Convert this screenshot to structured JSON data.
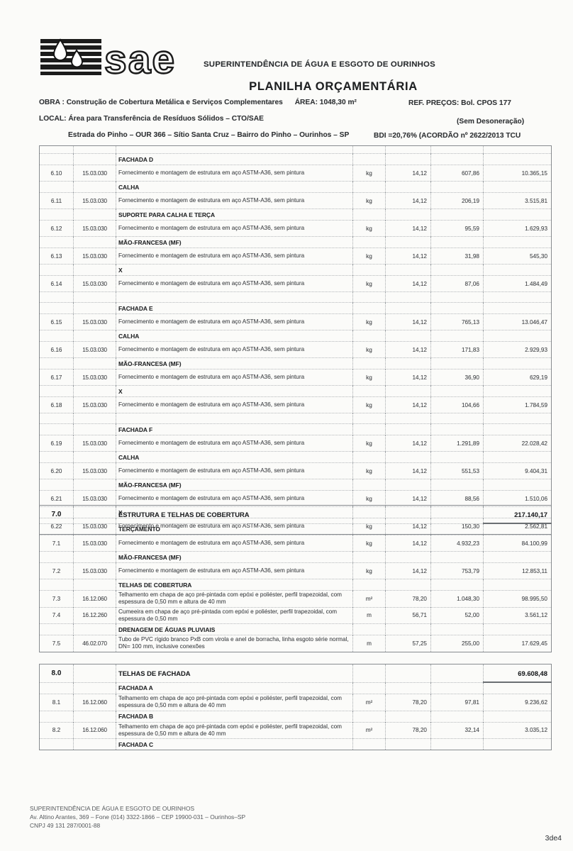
{
  "header": {
    "org_name": "SUPERINTENDÊNCIA DE ÁGUA E ESGOTO DE OURINHOS",
    "doc_title": "PLANILHA ORÇAMENTÁRIA",
    "obra_label": "OBRA :",
    "obra_value": "Construção de Cobertura Metálica e Serviços Complementares",
    "area": "ÁREA: 1048,30 m²",
    "ref_precos": "REF.  PREÇOS: Bol. CPOS 177",
    "local_label": "LOCAL:",
    "local_value": "Área para Transferência de Resíduos Sólidos – CTO/SAE",
    "desoneracao": "(Sem Desoneração)",
    "endereco": "Estrada do Pinho – OUR 366 – Sítio Santa Cruz – Bairro do Pinho – Ourinhos – SP",
    "bdi": "BDI =20,76% (ACORDÃO nº 2622/2013 TCU",
    "logo_text": "sae"
  },
  "table": {
    "blocks": [
      {
        "rows": [
          {
            "t": "sliver"
          },
          {
            "t": "hdr",
            "d": "FACHADA D"
          },
          {
            "t": "item",
            "n": "6.10",
            "c": "15.03.030",
            "d": "Fornecimento e montagem de estrutura em aço ASTM-A36, sem pintura",
            "u": "kg",
            "p": "14,12",
            "q": "607,86",
            "v": "10.365,15"
          },
          {
            "t": "hdr",
            "d": "CALHA"
          },
          {
            "t": "item",
            "n": "6.11",
            "c": "15.03.030",
            "d": "Fornecimento e montagem de estrutura em aço ASTM-A36, sem pintura",
            "u": "kg",
            "p": "14,12",
            "q": "206,19",
            "v": "3.515,81"
          },
          {
            "t": "hdr",
            "d": "SUPORTE PARA CALHA E TERÇA"
          },
          {
            "t": "item",
            "n": "6.12",
            "c": "15.03.030",
            "d": "Fornecimento e montagem de estrutura em aço ASTM-A36, sem pintura",
            "u": "kg",
            "p": "14,12",
            "q": "95,59",
            "v": "1.629,93"
          },
          {
            "t": "hdr",
            "d": "MÃO-FRANCESA (MF)"
          },
          {
            "t": "item",
            "n": "6.13",
            "c": "15.03.030",
            "d": "Fornecimento e montagem de estrutura em aço ASTM-A36, sem pintura",
            "u": "kg",
            "p": "14,12",
            "q": "31,98",
            "v": "545,30"
          },
          {
            "t": "hdr",
            "d": "X"
          },
          {
            "t": "item",
            "n": "6.14",
            "c": "15.03.030",
            "d": "Fornecimento e montagem de estrutura em aço ASTM-A36, sem pintura",
            "u": "kg",
            "p": "14,12",
            "q": "87,06",
            "v": "1.484,49"
          },
          {
            "t": "blank"
          },
          {
            "t": "hdr",
            "d": "FACHADA E"
          },
          {
            "t": "item",
            "n": "6.15",
            "c": "15.03.030",
            "d": "Fornecimento e montagem de estrutura em aço ASTM-A36, sem pintura",
            "u": "kg",
            "p": "14,12",
            "q": "765,13",
            "v": "13.046,47"
          },
          {
            "t": "hdr",
            "d": "CALHA"
          },
          {
            "t": "item",
            "n": "6.16",
            "c": "15.03.030",
            "d": "Fornecimento e montagem de estrutura em aço ASTM-A36, sem pintura",
            "u": "kg",
            "p": "14,12",
            "q": "171,83",
            "v": "2.929,93"
          },
          {
            "t": "hdr",
            "d": "MÃO-FRANCESA (MF)"
          },
          {
            "t": "item",
            "n": "6.17",
            "c": "15.03.030",
            "d": "Fornecimento e montagem de estrutura em aço ASTM-A36, sem pintura",
            "u": "kg",
            "p": "14,12",
            "q": "36,90",
            "v": "629,19"
          },
          {
            "t": "hdr",
            "d": "X"
          },
          {
            "t": "item",
            "n": "6.18",
            "c": "15.03.030",
            "d": "Fornecimento e montagem de estrutura em aço ASTM-A36, sem pintura",
            "u": "kg",
            "p": "14,12",
            "q": "104,66",
            "v": "1.784,59"
          },
          {
            "t": "blank"
          },
          {
            "t": "hdr",
            "d": "FACHADA F"
          },
          {
            "t": "item",
            "n": "6.19",
            "c": "15.03.030",
            "d": "Fornecimento e montagem de estrutura em aço ASTM-A36, sem pintura",
            "u": "kg",
            "p": "14,12",
            "q": "1.291,89",
            "v": "22.028,42"
          },
          {
            "t": "hdr",
            "d": "CALHA"
          },
          {
            "t": "item",
            "n": "6.20",
            "c": "15.03.030",
            "d": "Fornecimento e montagem de estrutura em aço ASTM-A36, sem pintura",
            "u": "kg",
            "p": "14,12",
            "q": "551,53",
            "v": "9.404,31"
          },
          {
            "t": "hdr",
            "d": "MÃO-FRANCESA (MF)"
          },
          {
            "t": "item",
            "n": "6.21",
            "c": "15.03.030",
            "d": "Fornecimento e montagem de estrutura em aço ASTM-A36, sem pintura",
            "u": "kg",
            "p": "14,12",
            "q": "88,56",
            "v": "1.510,06"
          },
          {
            "t": "hdr",
            "d": "X"
          },
          {
            "t": "item",
            "n": "6.22",
            "c": "15.03.030",
            "d": "Fornecimento e montagem de estrutura em aço ASTM-A36, sem pintura",
            "u": "kg",
            "p": "14,12",
            "q": "150,30",
            "v": "2.562,81"
          }
        ]
      },
      {
        "rows": [
          {
            "t": "sec",
            "n": "7.0",
            "d": "ESTRUTURA E TELHAS DE COBERTURA",
            "v": "217.140,17"
          },
          {
            "t": "hdr",
            "d": "TERÇAMENTO"
          },
          {
            "t": "item",
            "n": "7.1",
            "c": "15.03.030",
            "d": "Fornecimento e montagem de estrutura em aço ASTM-A36, sem pintura",
            "u": "kg",
            "p": "14,12",
            "q": "4.932,23",
            "v": "84.100,99"
          },
          {
            "t": "hdr",
            "d": "MÃO-FRANCESA (MF)"
          },
          {
            "t": "item",
            "n": "7.2",
            "c": "15.03.030",
            "d": "Fornecimento e montagem de estrutura em aço ASTM-A36, sem pintura",
            "u": "kg",
            "p": "14,12",
            "q": "753,79",
            "v": "12.853,11"
          },
          {
            "t": "hdr",
            "d": "TELHAS DE COBERTURA"
          },
          {
            "t": "item",
            "n": "7.3",
            "c": "16.12.060",
            "d": "Telhamento em chapa de aço pré-pintada com epóxi e poliéster, perfil trapezoidal, com espessura de 0,50 mm e altura de 40 mm",
            "u": "m²",
            "p": "78,20",
            "q": "1.048,30",
            "v": "98.995,50"
          },
          {
            "t": "item",
            "n": "7.4",
            "c": "16.12.260",
            "d": "Cumeeira em chapa de aço pré-pintada com epóxi e poliéster, perfil trapezoidal, com espessura de 0,50 mm",
            "u": "m",
            "p": "56,71",
            "q": "52,00",
            "v": "3.561,12"
          },
          {
            "t": "hdr",
            "d": "DRENAGEM DE ÁGUAS PLUVIAIS"
          },
          {
            "t": "item",
            "n": "7.5",
            "c": "46.02.070",
            "d": "Tubo de PVC rígido branco PxB com virola e anel de borracha, linha esgoto série normal, DN= 100 mm, inclusive conexões",
            "u": "m",
            "p": "57,25",
            "q": "255,00",
            "v": "17.629,45"
          }
        ]
      },
      {
        "rows": [
          {
            "t": "sec",
            "n": "8.0",
            "d": "TELHAS DE FACHADA",
            "v": "69.608,48"
          },
          {
            "t": "hdr",
            "d": "FACHADA A"
          },
          {
            "t": "item",
            "n": "8.1",
            "c": "16.12.060",
            "d": "Telhamento em chapa de aço pré-pintada com epóxi e poliéster, perfil trapezoidal, com espessura de 0,50 mm e altura de 40 mm",
            "u": "m²",
            "p": "78,20",
            "q": "97,81",
            "v": "9.236,62"
          },
          {
            "t": "hdr",
            "d": "FACHADA B"
          },
          {
            "t": "item",
            "n": "8.2",
            "c": "16.12.060",
            "d": "Telhamento em chapa de aço pré-pintada com epóxi e poliéster, perfil trapezoidal, com espessura de 0,50 mm e altura de 40 mm",
            "u": "m²",
            "p": "78,20",
            "q": "32,14",
            "v": "3.035,12"
          },
          {
            "t": "hdr",
            "d": "FACHADA C"
          }
        ]
      }
    ]
  },
  "footer": {
    "org": "SUPERINTENDÊNCIA DE ÁGUA E ESGOTO DE OURINHOS",
    "address": "Av. Altino Arantes, 369 – Fone (014) 3322-1866 – CEP 19900-031 – Ourinhos–SP",
    "cnpj": "CNPJ 49 131 287/0001-88",
    "page": "3de4"
  }
}
